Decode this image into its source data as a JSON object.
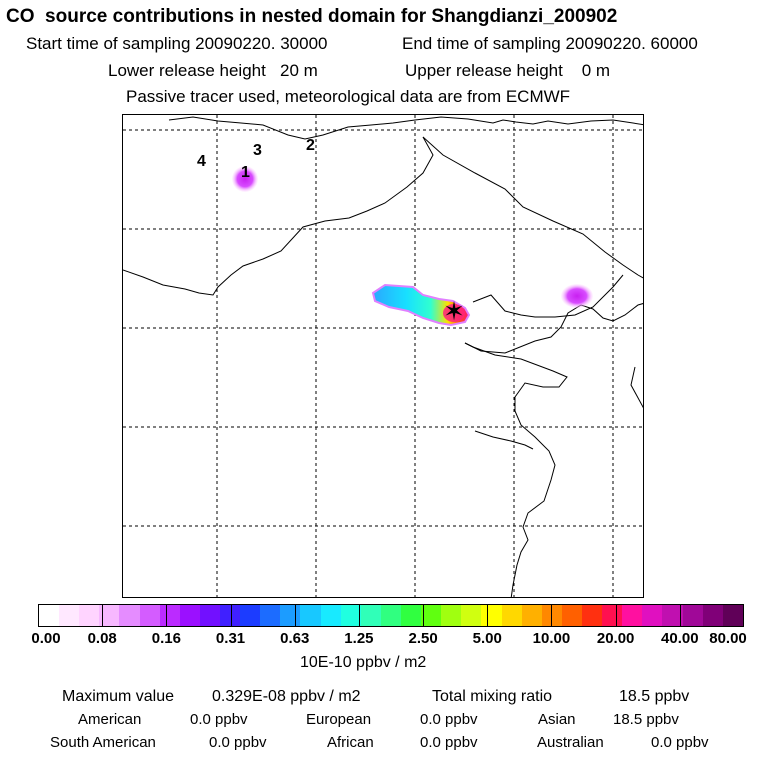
{
  "title": "CO  source contributions in nested domain for Shangdianzi_200902",
  "header": {
    "start_label": "Start time of sampling 20090220. 30000",
    "end_label": "End time of sampling 20090220. 60000",
    "lower_label": "Lower release height   20 m",
    "upper_label": "Upper release height    0 m",
    "tracer_label": "Passive tracer used, meteorological data are from ECMWF"
  },
  "map": {
    "markers": [
      "4",
      "3",
      "2",
      "1"
    ],
    "station_symbol": "✶"
  },
  "colorbar": {
    "ticks": [
      "0.00",
      "0.08",
      "0.16",
      "0.31",
      "0.63",
      "1.25",
      "2.50",
      "5.00",
      "10.00",
      "20.00",
      "40.00",
      "80.00"
    ],
    "unit": "10E-10 ppbv / m2",
    "colors": [
      "#ffffff",
      "#ffe8ff",
      "#ffd4ff",
      "#f7b8ff",
      "#e58cff",
      "#d45cff",
      "#bb2bff",
      "#9b10ff",
      "#7210ff",
      "#4020ff",
      "#1c3cff",
      "#1c6cff",
      "#1c9cff",
      "#18c8ff",
      "#18eaff",
      "#20ffe0",
      "#30ffb8",
      "#30ff80",
      "#30ff40",
      "#60ff10",
      "#a0ff10",
      "#d0ff10",
      "#ffff00",
      "#ffd800",
      "#ffb000",
      "#ff8800",
      "#ff6000",
      "#ff3010",
      "#ff1050",
      "#ff10a0",
      "#e010c0",
      "#c010b0",
      "#a00898",
      "#800078",
      "#600058"
    ]
  },
  "summary": {
    "max_label": "Maximum value",
    "max_value": "0.329E-08 ppbv / m2",
    "total_label": "Total mixing ratio",
    "total_value": "18.5 ppbv",
    "regions": [
      {
        "name": "American",
        "value": "0.0 ppbv"
      },
      {
        "name": "European",
        "value": "0.0 ppbv"
      },
      {
        "name": "Asian",
        "value": "18.5 ppbv"
      },
      {
        "name": "South American",
        "value": "0.0 ppbv"
      },
      {
        "name": "African",
        "value": "0.0 ppbv"
      },
      {
        "name": "Australian",
        "value": "0.0 ppbv"
      }
    ]
  }
}
